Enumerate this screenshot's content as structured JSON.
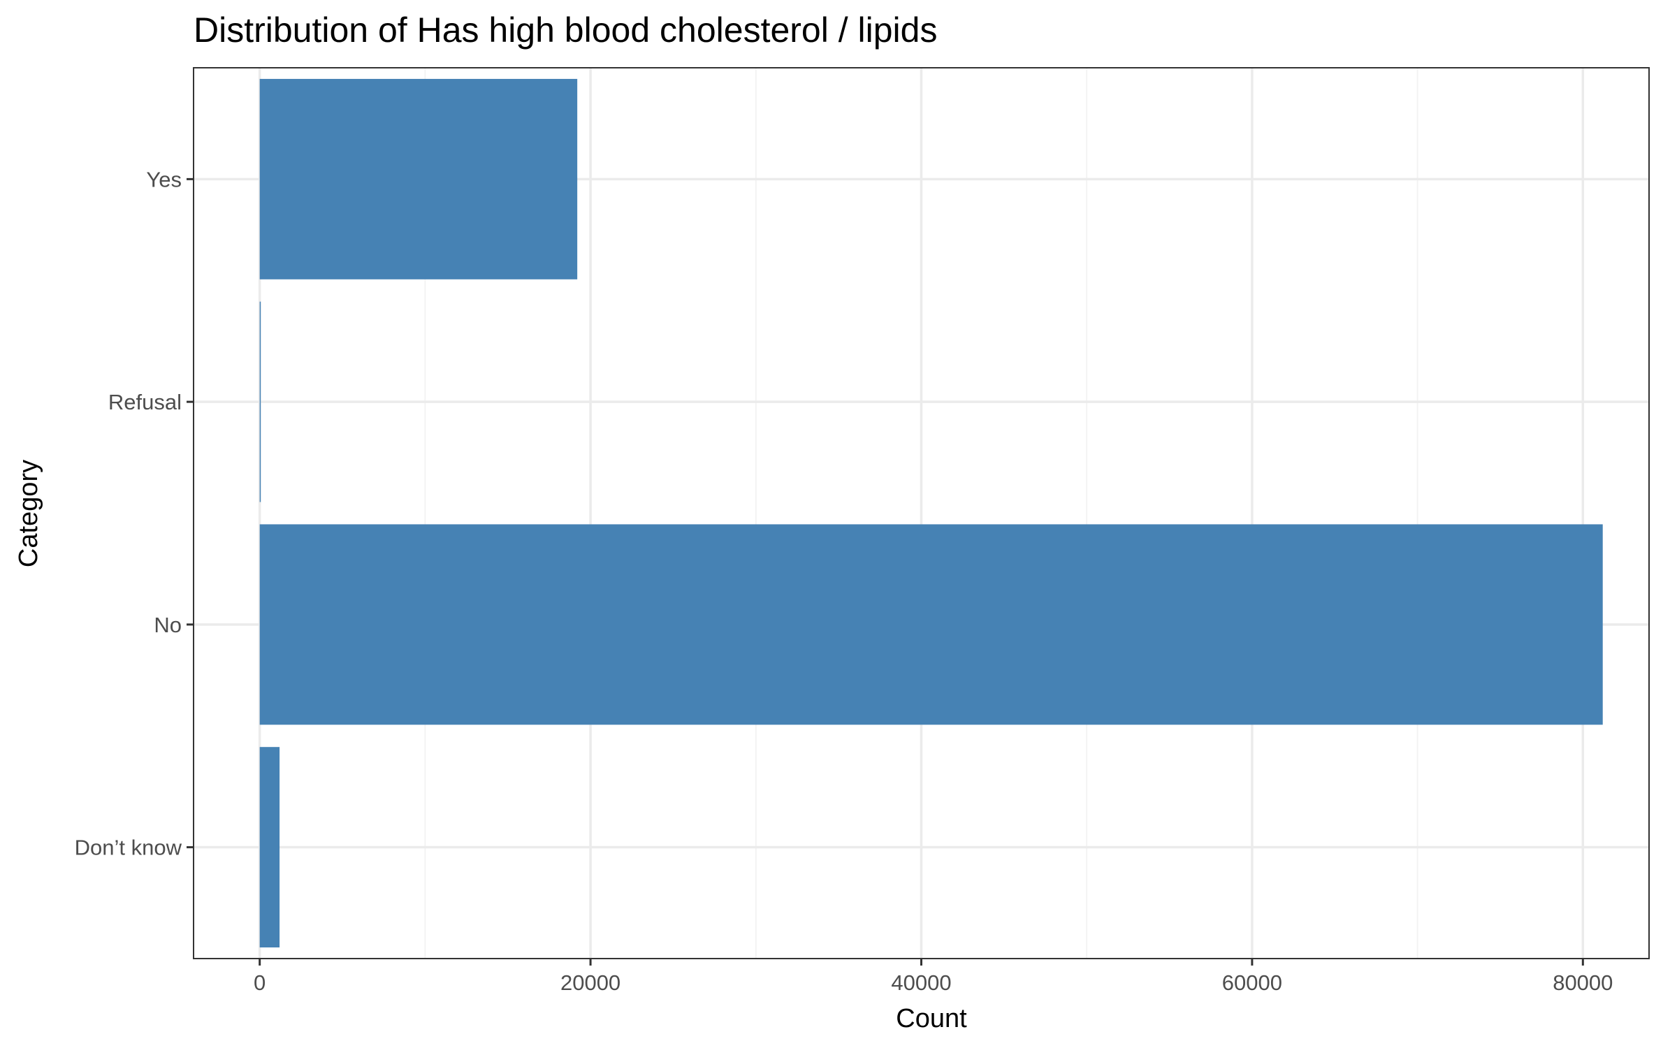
{
  "chart_data": {
    "type": "bar",
    "orientation": "horizontal",
    "title": "Distribution of Has high blood cholesterol / lipids",
    "xlabel": "Count",
    "ylabel": "Category",
    "categories": [
      "Don’t know",
      "No",
      "Refusal",
      "Yes"
    ],
    "values": [
      1200,
      81200,
      60,
      19200
    ],
    "xlim": [
      -4000,
      84000
    ],
    "x_ticks": [
      0,
      20000,
      40000,
      60000,
      80000
    ],
    "x_tick_labels": [
      "0",
      "20000",
      "40000",
      "60000",
      "80000"
    ],
    "bar_color": "#4682b4",
    "grid": true,
    "legend": "none"
  }
}
